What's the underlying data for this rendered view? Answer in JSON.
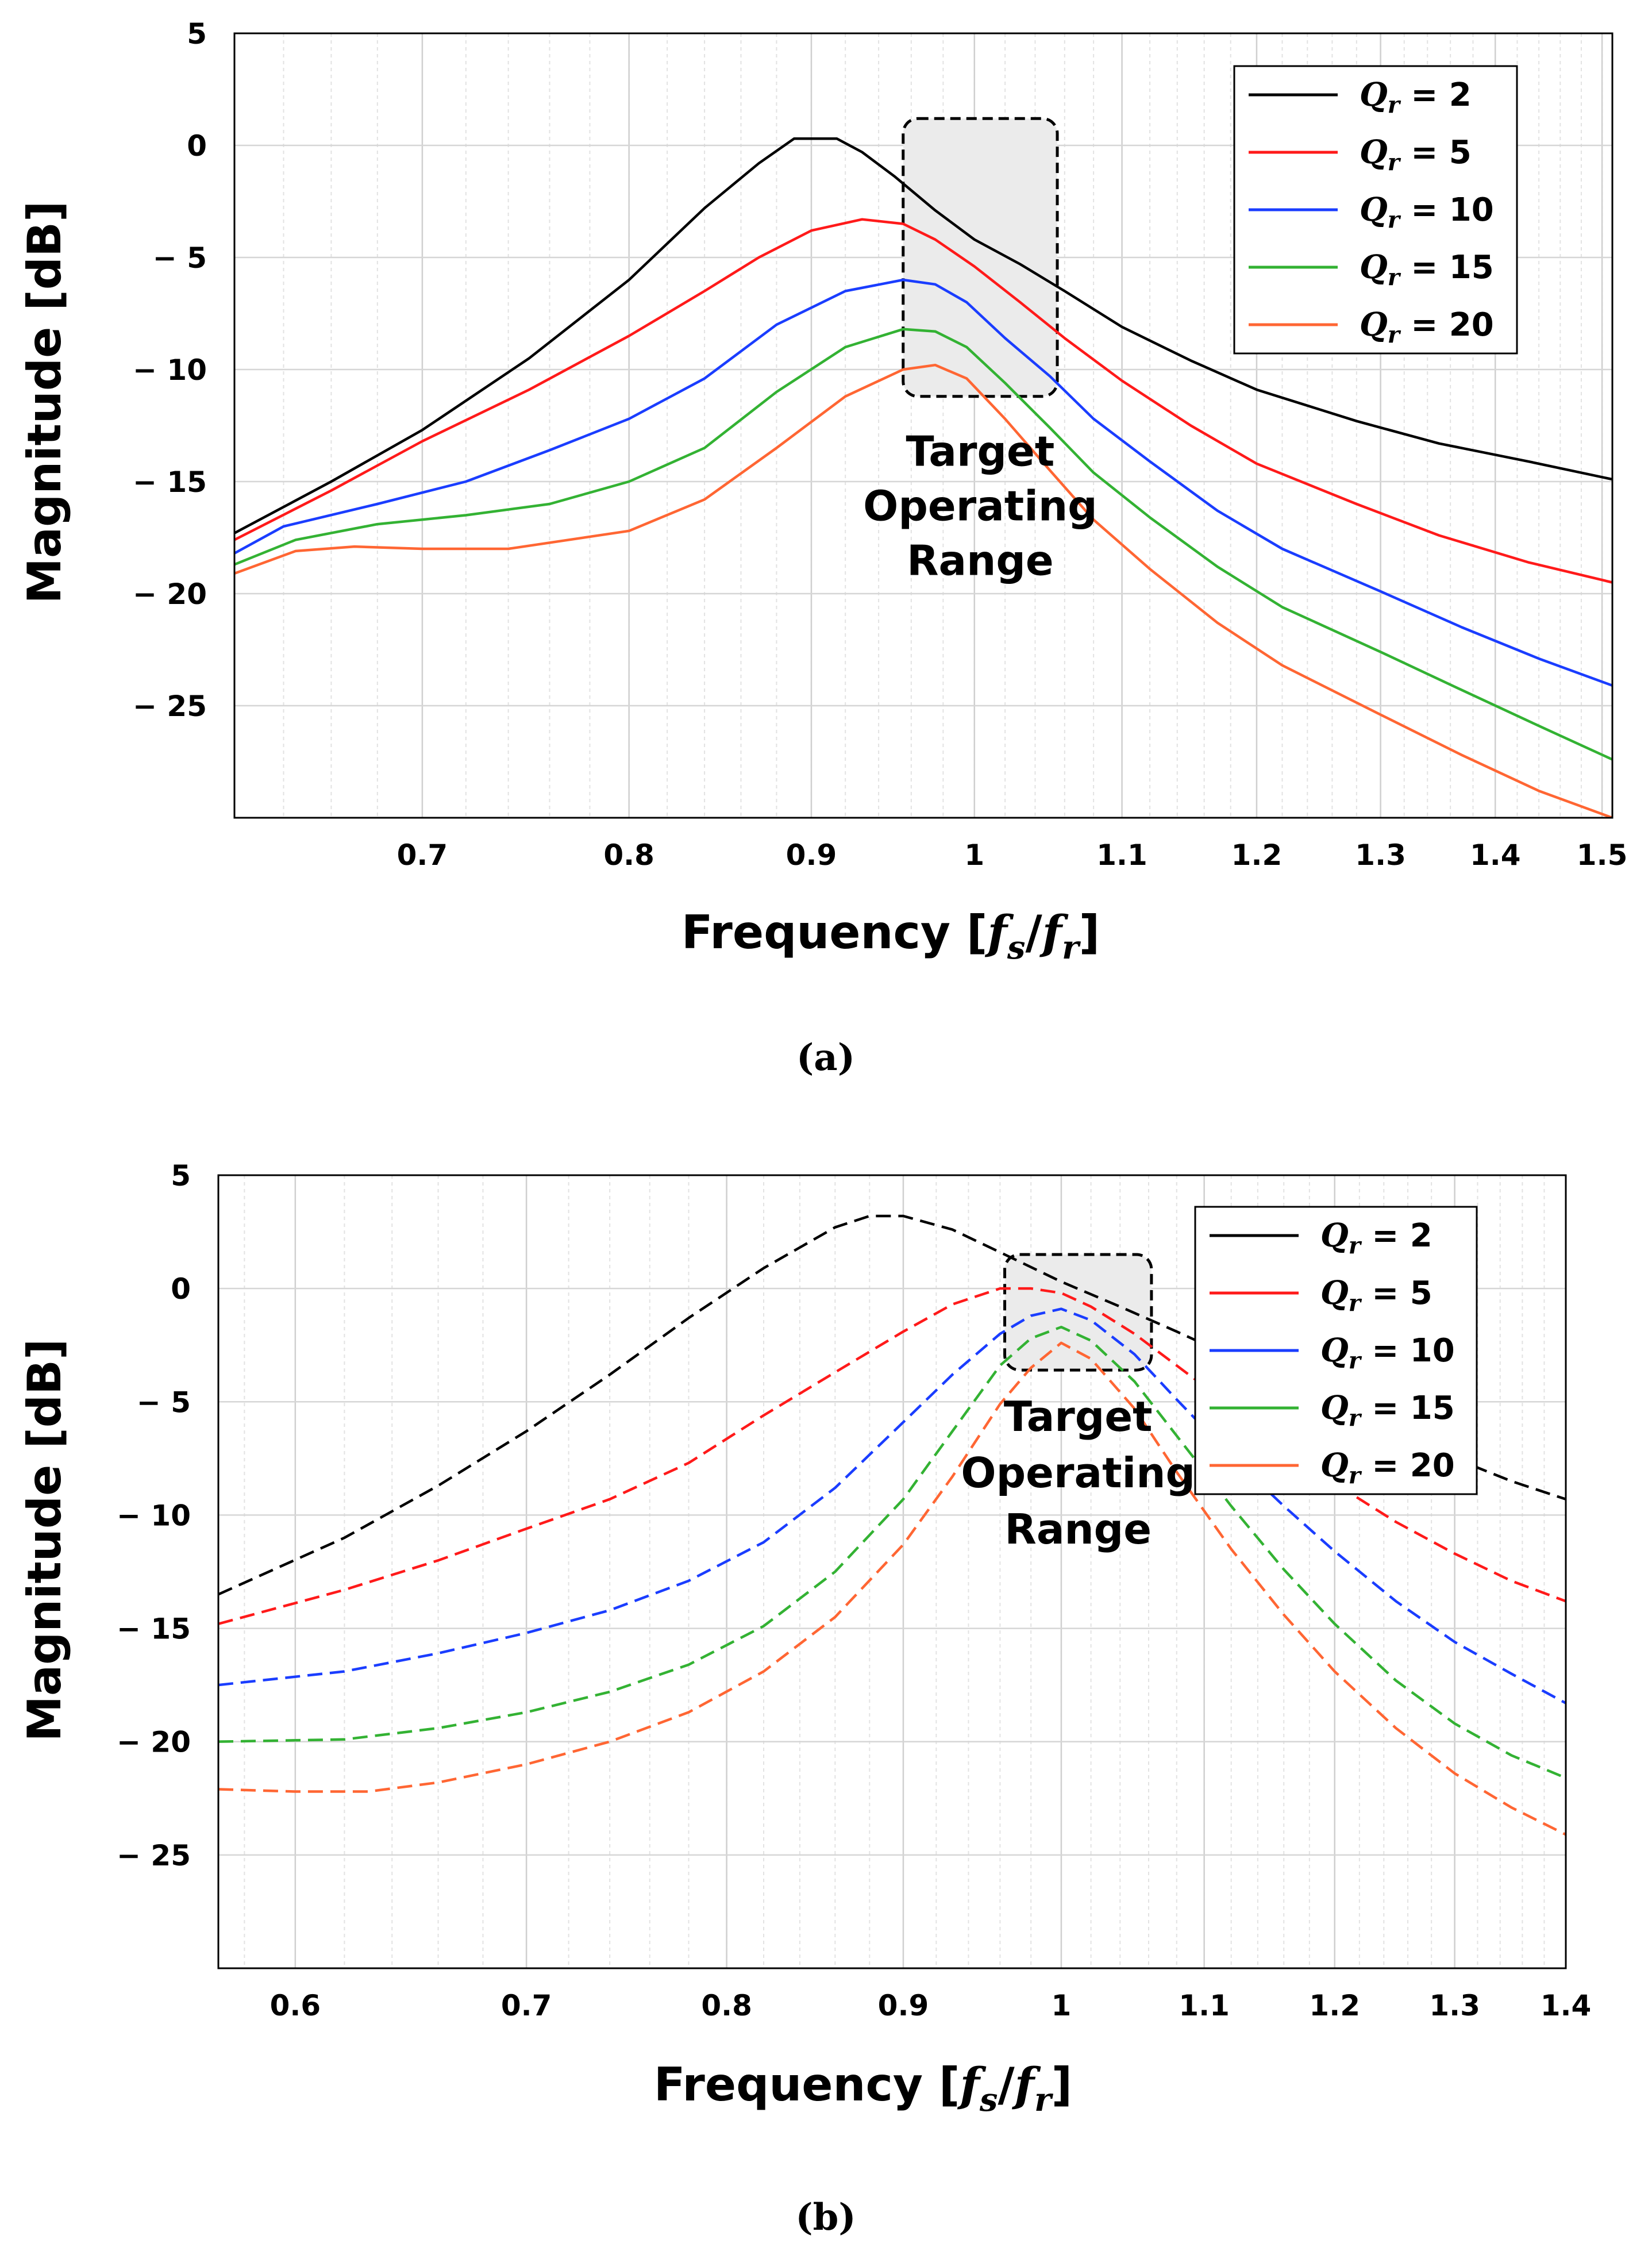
{
  "chart_data": [
    {
      "type": "line",
      "panel": "a",
      "caption": "(a)",
      "title": "",
      "xlabel": "Frequency [",
      "xlabel_unit": {
        "num": "f",
        "num_sub": "s",
        "sep": "/",
        "den": "f",
        "den_sub": "r",
        "close": "]"
      },
      "ylabel": "Magnitude [dB]",
      "x_scale": "log",
      "xlim": [
        0.62,
        1.51
      ],
      "ylim": [
        -30,
        5
      ],
      "grid": true,
      "line_style": "solid",
      "xticks": [
        0.7,
        0.8,
        0.9,
        1,
        1.1,
        1.2,
        1.3,
        1.4,
        1.5
      ],
      "xtick_labels": [
        "0.7",
        "0.8",
        "0.9",
        "1",
        "1.1",
        "1.2",
        "1.3",
        "1.4",
        "1.5"
      ],
      "yticks": [
        5,
        0,
        -5,
        -10,
        -15,
        -20,
        -25
      ],
      "ytick_labels": [
        "5",
        "0",
        "− 5",
        "− 10",
        "− 15",
        "− 20",
        "− 25"
      ],
      "legend_placement": "top-right",
      "annotation": {
        "lines": [
          "Target",
          "Operating",
          "Range"
        ],
        "x_range": [
          0.955,
          1.055
        ],
        "y_range": [
          -11.2,
          1.2
        ]
      },
      "series": [
        {
          "name": "Q_r = 2",
          "q_value": "2",
          "color": "#000000",
          "x": [
            0.62,
            0.66,
            0.7,
            0.75,
            0.8,
            0.84,
            0.87,
            0.89,
            0.915,
            0.93,
            0.95,
            0.975,
            1.0,
            1.03,
            1.06,
            1.1,
            1.15,
            1.2,
            1.28,
            1.35,
            1.43,
            1.51
          ],
          "y": [
            -17.3,
            -15.0,
            -12.7,
            -9.5,
            -6.0,
            -2.8,
            -0.8,
            0.3,
            0.3,
            -0.3,
            -1.4,
            -2.9,
            -4.2,
            -5.3,
            -6.5,
            -8.1,
            -9.6,
            -10.9,
            -12.3,
            -13.3,
            -14.1,
            -14.9
          ]
        },
        {
          "name": "Q_r = 5",
          "q_value": "5",
          "color": "#ff1a1a",
          "x": [
            0.62,
            0.66,
            0.7,
            0.75,
            0.8,
            0.84,
            0.87,
            0.9,
            0.93,
            0.955,
            0.975,
            1.0,
            1.03,
            1.06,
            1.1,
            1.15,
            1.2,
            1.28,
            1.35,
            1.43,
            1.51
          ],
          "y": [
            -17.6,
            -15.4,
            -13.2,
            -10.9,
            -8.5,
            -6.5,
            -5.0,
            -3.8,
            -3.3,
            -3.5,
            -4.2,
            -5.4,
            -7.0,
            -8.6,
            -10.5,
            -12.5,
            -14.2,
            -16.0,
            -17.4,
            -18.6,
            -19.5
          ]
        },
        {
          "name": "Q_r = 10",
          "q_value": "10",
          "color": "#1a3dff",
          "x": [
            0.62,
            0.64,
            0.68,
            0.72,
            0.76,
            0.8,
            0.84,
            0.88,
            0.92,
            0.955,
            0.975,
            0.995,
            1.02,
            1.05,
            1.08,
            1.12,
            1.17,
            1.22,
            1.3,
            1.37,
            1.44,
            1.51
          ],
          "y": [
            -18.2,
            -17.0,
            -16.0,
            -15.0,
            -13.6,
            -12.2,
            -10.4,
            -8.0,
            -6.5,
            -6.0,
            -6.2,
            -7.0,
            -8.6,
            -10.3,
            -12.2,
            -14.1,
            -16.3,
            -18.0,
            -19.9,
            -21.5,
            -22.9,
            -24.1
          ]
        },
        {
          "name": "Q_r = 15",
          "q_value": "15",
          "color": "#33b233",
          "x": [
            0.62,
            0.645,
            0.68,
            0.72,
            0.76,
            0.8,
            0.84,
            0.88,
            0.92,
            0.955,
            0.975,
            0.995,
            1.02,
            1.05,
            1.08,
            1.12,
            1.17,
            1.22,
            1.3,
            1.37,
            1.44,
            1.51
          ],
          "y": [
            -18.7,
            -17.6,
            -16.9,
            -16.5,
            -16.0,
            -15.0,
            -13.5,
            -11.0,
            -9.0,
            -8.2,
            -8.3,
            -9.0,
            -10.6,
            -12.6,
            -14.6,
            -16.6,
            -18.8,
            -20.6,
            -22.6,
            -24.3,
            -25.9,
            -27.4
          ]
        },
        {
          "name": "Q_r = 20",
          "q_value": "20",
          "color": "#ff6633",
          "x": [
            0.62,
            0.645,
            0.67,
            0.7,
            0.74,
            0.8,
            0.84,
            0.88,
            0.92,
            0.955,
            0.975,
            0.995,
            1.02,
            1.05,
            1.08,
            1.12,
            1.17,
            1.22,
            1.3,
            1.37,
            1.44,
            1.51
          ],
          "y": [
            -19.1,
            -18.1,
            -17.9,
            -18.0,
            -18.0,
            -17.2,
            -15.8,
            -13.5,
            -11.2,
            -10.0,
            -9.8,
            -10.4,
            -12.2,
            -14.5,
            -16.7,
            -18.9,
            -21.3,
            -23.2,
            -25.4,
            -27.2,
            -28.8,
            -30.0
          ]
        }
      ]
    },
    {
      "type": "line",
      "panel": "b",
      "caption": "(b)",
      "title": "",
      "xlabel": "Frequency [",
      "xlabel_unit": {
        "num": "f",
        "num_sub": "s",
        "sep": "/",
        "den": "f",
        "den_sub": "r",
        "close": "]"
      },
      "ylabel": "Magnitude [dB]",
      "x_scale": "log",
      "xlim": [
        0.57,
        1.4
      ],
      "ylim": [
        -30,
        5
      ],
      "grid": true,
      "line_style": "dashed",
      "xticks": [
        0.6,
        0.7,
        0.8,
        0.9,
        1,
        1.1,
        1.2,
        1.3,
        1.4
      ],
      "xtick_labels": [
        "0.6",
        "0.7",
        "0.8",
        "0.9",
        "1",
        "1.1",
        "1.2",
        "1.3",
        "1.4"
      ],
      "yticks": [
        5,
        0,
        -5,
        -10,
        -15,
        -20,
        -25
      ],
      "ytick_labels": [
        "5",
        "0",
        "− 5",
        "− 10",
        "− 15",
        "− 20",
        "− 25"
      ],
      "legend_placement": "top-right",
      "annotation": {
        "lines": [
          "Target",
          "Operating",
          "Range"
        ],
        "x_range": [
          0.963,
          1.062
        ],
        "y_range": [
          -3.6,
          1.5
        ]
      },
      "series": [
        {
          "name": "Q_r = 2",
          "q_value": "2",
          "color": "#000000",
          "x": [
            0.57,
            0.62,
            0.66,
            0.7,
            0.74,
            0.78,
            0.82,
            0.86,
            0.88,
            0.9,
            0.93,
            0.96,
            1.0,
            1.04,
            1.08,
            1.12,
            1.16,
            1.2,
            1.25,
            1.3,
            1.35,
            1.4
          ],
          "y": [
            -13.5,
            -11.0,
            -8.7,
            -6.3,
            -3.8,
            -1.3,
            0.9,
            2.7,
            3.2,
            3.2,
            2.6,
            1.6,
            0.3,
            -0.8,
            -1.9,
            -3.0,
            -4.0,
            -5.0,
            -6.3,
            -7.5,
            -8.5,
            -9.3
          ]
        },
        {
          "name": "Q_r = 5",
          "q_value": "5",
          "color": "#ff1a1a",
          "x": [
            0.57,
            0.62,
            0.66,
            0.7,
            0.74,
            0.78,
            0.82,
            0.86,
            0.9,
            0.93,
            0.96,
            0.98,
            1.0,
            1.02,
            1.05,
            1.08,
            1.12,
            1.16,
            1.2,
            1.25,
            1.3,
            1.35,
            1.4
          ],
          "y": [
            -14.8,
            -13.3,
            -12.0,
            -10.6,
            -9.3,
            -7.7,
            -5.6,
            -3.7,
            -1.9,
            -0.7,
            0.0,
            0.0,
            -0.2,
            -0.8,
            -2.0,
            -3.4,
            -5.2,
            -7.0,
            -8.6,
            -10.3,
            -11.7,
            -12.9,
            -13.8
          ]
        },
        {
          "name": "Q_r = 10",
          "q_value": "10",
          "color": "#1a3dff",
          "x": [
            0.57,
            0.62,
            0.66,
            0.7,
            0.74,
            0.78,
            0.82,
            0.86,
            0.9,
            0.93,
            0.96,
            0.98,
            1.0,
            1.02,
            1.05,
            1.08,
            1.12,
            1.16,
            1.2,
            1.25,
            1.3,
            1.35,
            1.4
          ],
          "y": [
            -17.5,
            -16.9,
            -16.1,
            -15.2,
            -14.2,
            -12.9,
            -11.2,
            -8.8,
            -5.9,
            -3.8,
            -2.0,
            -1.2,
            -0.9,
            -1.4,
            -2.9,
            -4.9,
            -7.4,
            -9.6,
            -11.6,
            -13.8,
            -15.6,
            -17.0,
            -18.3
          ]
        },
        {
          "name": "Q_r = 15",
          "q_value": "15",
          "color": "#33b233",
          "x": [
            0.57,
            0.62,
            0.66,
            0.7,
            0.74,
            0.78,
            0.82,
            0.86,
            0.9,
            0.93,
            0.96,
            0.98,
            1.0,
            1.02,
            1.05,
            1.08,
            1.12,
            1.16,
            1.2,
            1.25,
            1.3,
            1.35,
            1.4
          ],
          "y": [
            -20.0,
            -19.9,
            -19.4,
            -18.7,
            -17.8,
            -16.6,
            -14.9,
            -12.5,
            -9.3,
            -6.3,
            -3.4,
            -2.2,
            -1.7,
            -2.3,
            -4.1,
            -6.5,
            -9.6,
            -12.4,
            -14.8,
            -17.3,
            -19.2,
            -20.6,
            -21.6
          ]
        },
        {
          "name": "Q_r = 20",
          "q_value": "20",
          "color": "#ff6633",
          "x": [
            0.57,
            0.6,
            0.63,
            0.66,
            0.7,
            0.74,
            0.78,
            0.82,
            0.86,
            0.9,
            0.93,
            0.96,
            0.98,
            1.0,
            1.02,
            1.05,
            1.08,
            1.12,
            1.16,
            1.2,
            1.25,
            1.3,
            1.35,
            1.4
          ],
          "y": [
            -22.1,
            -22.2,
            -22.2,
            -21.8,
            -21.0,
            -20.0,
            -18.7,
            -16.9,
            -14.5,
            -11.3,
            -8.3,
            -5.1,
            -3.5,
            -2.4,
            -3.1,
            -5.3,
            -8.1,
            -11.5,
            -14.4,
            -16.9,
            -19.4,
            -21.4,
            -22.9,
            -24.1
          ]
        }
      ]
    }
  ]
}
